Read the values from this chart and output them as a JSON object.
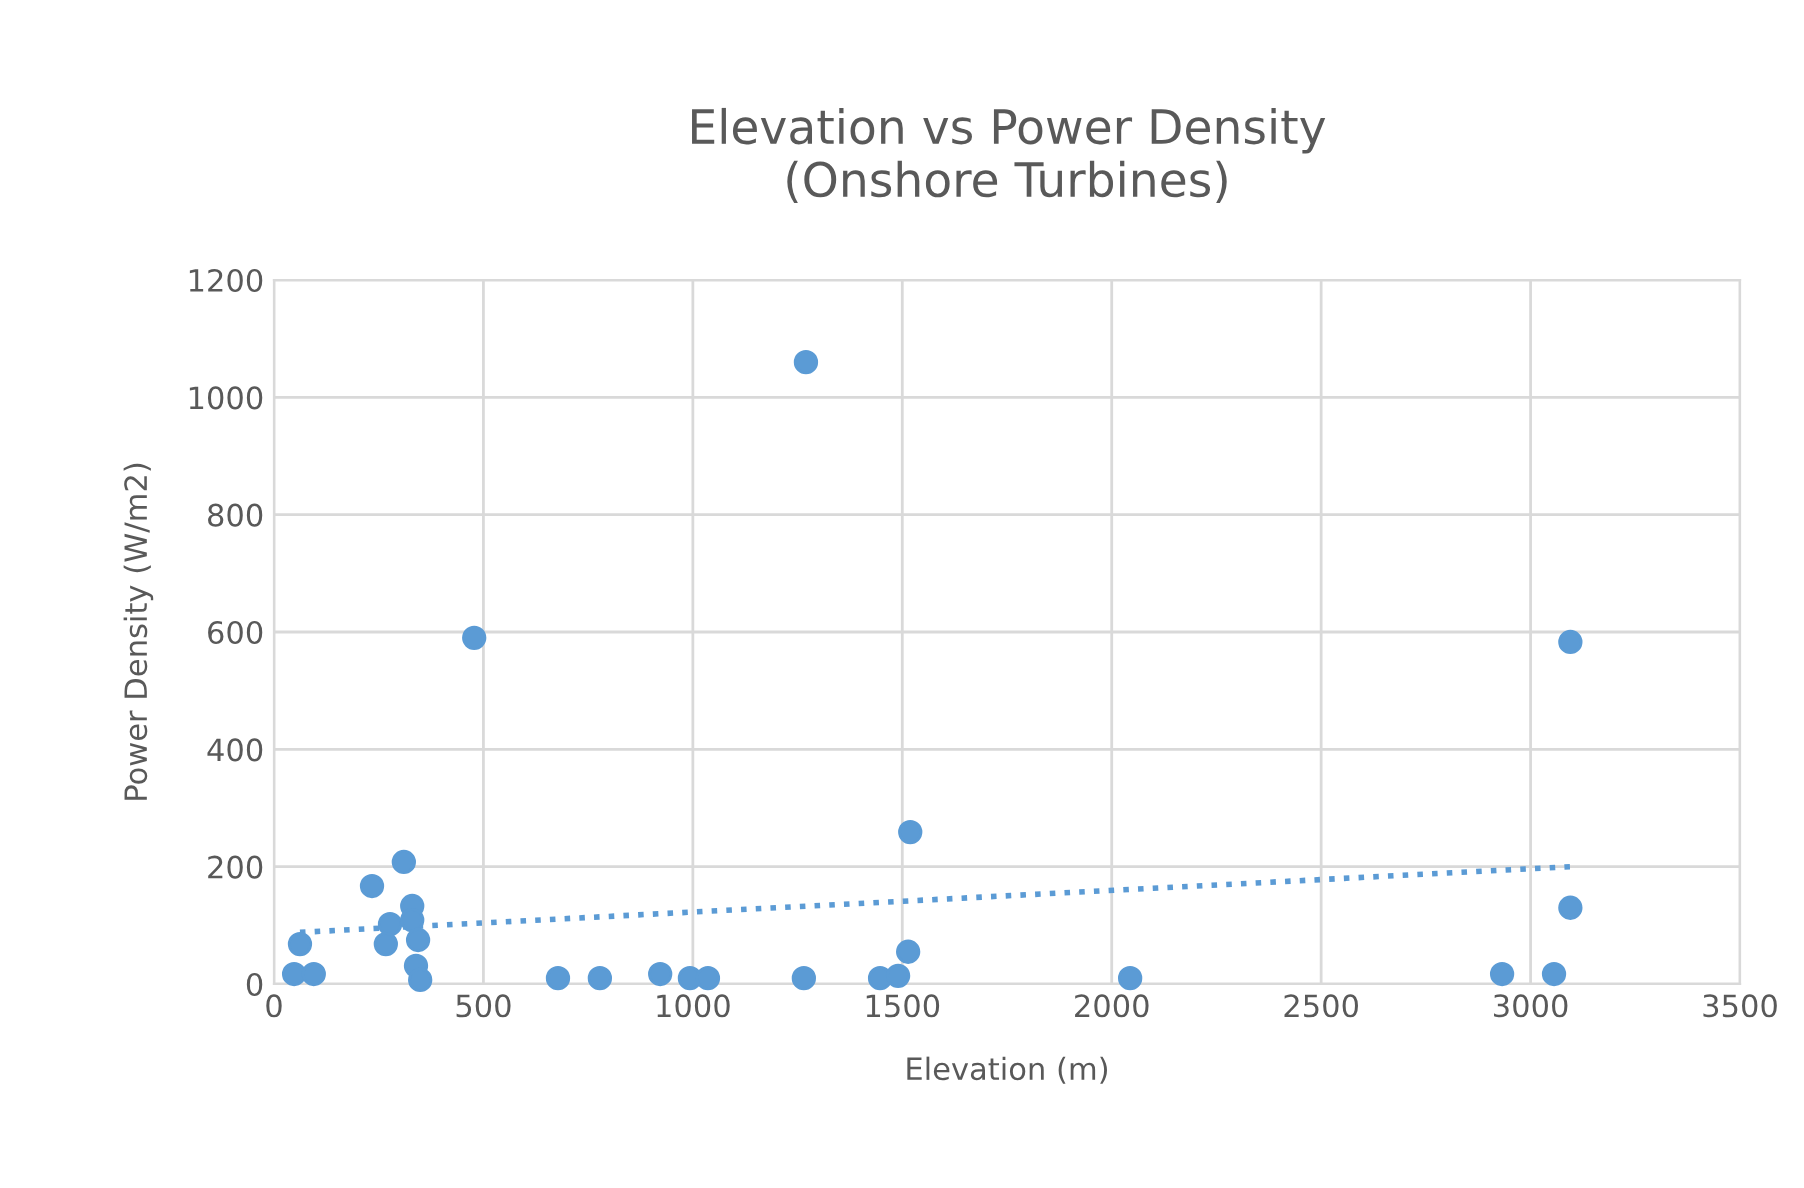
{
  "chart_data": {
    "type": "scatter",
    "title": "Elevation vs Power Density\n(Onshore Turbines)",
    "xlabel": "Elevation (m)",
    "ylabel": "Power Density (W/m2)",
    "series": [
      {
        "color": "#5b9bd5",
        "marker": "circle",
        "x": [
          62,
          57,
          48,
          76,
          95,
          234,
          310,
          277,
          267,
          330,
          330,
          344,
          339,
          349,
          478,
          678,
          778,
          922,
          993,
          1036,
          1270,
          1265,
          1447,
          1490,
          1514,
          1519,
          2044,
          2932,
          3056,
          3095,
          3095
        ],
        "values": [
          68,
          null,
          17,
          null,
          17,
          167,
          208,
          102,
          68,
          133,
          109,
          75,
          31,
          7,
          590,
          10,
          10,
          17,
          10,
          10,
          1060,
          10,
          10,
          14,
          55,
          259,
          10,
          17,
          17,
          583,
          130
        ]
      },
      {
        "type": "line",
        "color": "#5b9bd5",
        "line_style": "dotted",
        "marker": "none",
        "x": [
          62,
          3095
        ],
        "values": [
          88,
          200
        ]
      }
    ],
    "xlim": [
      0,
      3500
    ],
    "xticks": [
      0,
      500,
      1000,
      1500,
      2000,
      2500,
      3000,
      3500
    ],
    "ylim": [
      0,
      1200
    ],
    "yticks": [
      0,
      200,
      400,
      600,
      800,
      1000,
      1200
    ],
    "grid": true,
    "legend": false
  }
}
